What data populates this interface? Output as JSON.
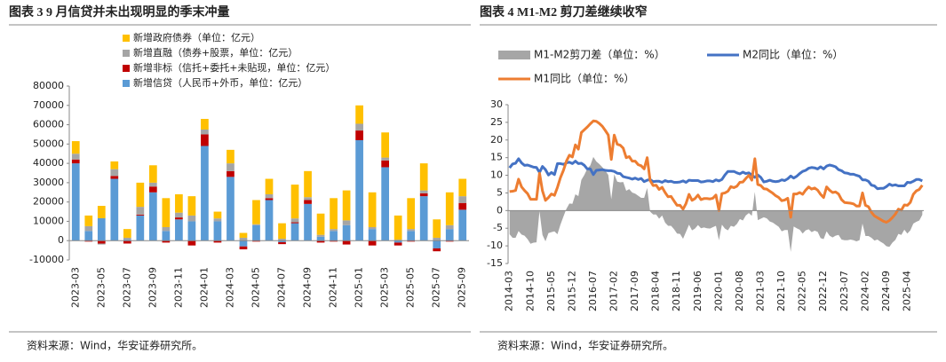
{
  "chart_data": [
    {
      "type": "bar",
      "stacked": true,
      "title": "图表 3 9 月信贷并未出现明显的季末冲量",
      "source": "资料来源：Wind，华安证券研究所。",
      "categories": [
        "2023-03",
        null,
        "2023-05",
        null,
        "2023-07",
        null,
        "2023-09",
        null,
        "2023-11",
        null,
        "2024-01",
        null,
        "2024-03",
        null,
        "2024-05",
        null,
        "2024-07",
        null,
        "2024-09",
        null,
        "2024-11",
        null,
        "2025-01",
        null,
        "2025-03",
        null,
        "2025-05",
        null,
        "2025-07",
        null,
        "2025-09"
      ],
      "series": [
        {
          "name": "新增政府债券（单位：亿元）",
          "color": "#ffc000",
          "values": [
            6500,
            5500,
            6400,
            4000,
            4500,
            12500,
            9000,
            15000,
            9500,
            10000,
            5500,
            3500,
            7000,
            2500,
            12500,
            8000,
            8000,
            17500,
            13500,
            11000,
            16000,
            15500,
            9500,
            18000,
            13000,
            12500,
            16000,
            14000,
            9500,
            17000,
            9000
          ]
        },
        {
          "name": "新增直融（债券+股票，单位：亿元）",
          "color": "#a5a5a5",
          "values": [
            3000,
            2500,
            -500,
            3500,
            1000,
            4000,
            2000,
            2000,
            2500,
            3000,
            2500,
            1500,
            4000,
            1500,
            500,
            2000,
            1000,
            2000,
            1500,
            1000,
            1000,
            2500,
            3500,
            1000,
            1500,
            500,
            1000,
            1500,
            1500,
            2000,
            3500
          ]
        },
        {
          "name": "新增非标（信托+委托+未贴现，单位：亿元）",
          "color": "#c00000",
          "values": [
            2000,
            -500,
            -1500,
            1500,
            -1500,
            500,
            3000,
            -1000,
            1000,
            -2500,
            6000,
            -1000,
            3000,
            -1500,
            -500,
            1000,
            -1000,
            500,
            2000,
            -1000,
            -500,
            -2000,
            5000,
            -2500,
            3500,
            -1500,
            -500,
            1500,
            -1500,
            -500,
            3500
          ]
        },
        {
          "name": "新增信贷（人民币+外币，单位：亿元）",
          "color": "#5b9bd5",
          "values": [
            40000,
            5000,
            11600,
            32000,
            500,
            13000,
            25000,
            5000,
            11000,
            10000,
            49000,
            10000,
            33000,
            -3000,
            8000,
            21000,
            -800,
            9000,
            19000,
            2000,
            5000,
            8000,
            52000,
            6000,
            38000,
            -1000,
            5000,
            23000,
            -4000,
            6000,
            16000
          ]
        }
      ],
      "ylim": [
        -10000,
        80000
      ],
      "yticks": [
        -10000,
        0,
        10000,
        20000,
        30000,
        40000,
        50000,
        60000,
        70000,
        80000
      ]
    },
    {
      "type": "line",
      "title": "图表 4 M1-M2 剪刀差继续收窄",
      "source": "资料来源：Wind，华安证券研究所。",
      "categories": [
        "2014-03",
        null,
        null,
        null,
        null,
        null,
        null,
        "2014-10",
        null,
        null,
        null,
        null,
        null,
        null,
        "2015-05",
        null,
        null,
        null,
        null,
        null,
        null,
        "2015-12",
        null,
        null,
        null,
        null,
        null,
        null,
        "2016-07",
        null,
        null,
        null,
        null,
        null,
        null,
        "2017-02",
        null,
        null,
        null,
        null,
        null,
        null,
        "2017-09",
        null,
        null,
        null,
        null,
        null,
        null,
        "2018-04",
        null,
        null,
        null,
        null,
        null,
        null,
        "2018-11",
        null,
        null,
        null,
        null,
        null,
        null,
        "2019-06",
        null,
        null,
        null,
        null,
        null,
        null,
        "2020-01",
        null,
        null,
        null,
        null,
        null,
        null,
        "2020-08",
        null,
        null,
        null,
        null,
        null,
        null,
        "2021-03",
        null,
        null,
        null,
        null,
        null,
        null,
        "2021-10",
        null,
        null,
        null,
        null,
        null,
        null,
        "2022-05",
        null,
        null,
        null,
        null,
        null,
        null,
        "2022-12",
        null,
        null,
        null,
        null,
        null,
        null,
        "2023-07",
        null,
        null,
        null,
        null,
        null,
        null,
        "2024-02",
        null,
        null,
        null,
        null,
        null,
        null,
        "2024-09",
        null,
        null,
        null,
        null,
        null,
        null,
        "2025-04",
        null,
        null,
        null,
        null,
        null
      ],
      "series": [
        {
          "name": "M1-M2剪刀差（单位：%）",
          "color": "#a6a6a6",
          "kind": "area",
          "values": [
            -6.7,
            -7.7,
            -7.7,
            -5.8,
            -6.8,
            -7.1,
            -8.1,
            -9.4,
            -9.1,
            -9.0,
            -0.2,
            -6.9,
            -8.7,
            -6.4,
            -6.1,
            -5.9,
            -6.7,
            -4.0,
            -1.7,
            0.5,
            2.0,
            1.9,
            4.6,
            4.1,
            8.7,
            10.1,
            11.9,
            12.8,
            15.2,
            13.9,
            13.2,
            12.3,
            11.3,
            10.1,
            3.2,
            10.3,
            8.2,
            8.0,
            8.1,
            5.6,
            6.1,
            5.1,
            4.8,
            4.2,
            3.6,
            3.6,
            6.4,
            -0.3,
            -1.1,
            -1.1,
            -2.3,
            -1.4,
            -3.4,
            -4.3,
            -4.3,
            -5.3,
            -6.5,
            -6.6,
            -8.0,
            -6.0,
            -4.0,
            -5.6,
            -5.1,
            -4.1,
            -5.0,
            -4.8,
            -5.0,
            -5.1,
            -4.7,
            -4.3,
            -8.4,
            -4.0,
            -5.1,
            -5.6,
            -4.3,
            -4.6,
            -3.8,
            -2.4,
            -2.8,
            -1.4,
            -0.7,
            -1.5,
            5.3,
            -2.7,
            -2.3,
            -1.9,
            -2.2,
            -3.1,
            -3.4,
            -4.0,
            -4.6,
            -5.9,
            -5.5,
            -5.5,
            -11.7,
            -4.5,
            -5.0,
            -5.4,
            -6.5,
            -5.6,
            -5.3,
            -6.1,
            -5.7,
            -6.0,
            -7.8,
            -8.1,
            -5.9,
            -7.1,
            -7.6,
            -7.1,
            -6.9,
            -8.2,
            -8.4,
            -8.4,
            -8.2,
            -8.4,
            -8.7,
            -8.4,
            -3.7,
            -7.2,
            -7.2,
            -7.7,
            -8.5,
            -8.2,
            -8.8,
            -9.3,
            -10.1,
            -10.3,
            -9.1,
            -8.3,
            -6.6,
            -6.9,
            -5.4,
            -6.5,
            -5.6,
            -3.7,
            -3.2,
            -2.8,
            -1.2
          ]
        },
        {
          "name": "M2同比（单位：%）",
          "color": "#4472c4",
          "kind": "line",
          "values": [
            12.1,
            13.2,
            13.4,
            14.7,
            13.5,
            12.8,
            12.9,
            12.6,
            12.3,
            12.2,
            10.8,
            12.5,
            11.6,
            10.1,
            10.8,
            10.2,
            13.3,
            13.3,
            13.1,
            13.5,
            13.7,
            13.3,
            14.0,
            13.3,
            13.4,
            12.8,
            11.8,
            11.8,
            10.2,
            11.4,
            11.5,
            11.6,
            11.4,
            11.3,
            11.3,
            11.1,
            10.6,
            10.5,
            9.6,
            9.4,
            9.2,
            8.9,
            9.2,
            8.8,
            9.1,
            8.2,
            8.6,
            8.8,
            8.2,
            8.3,
            8.3,
            8.0,
            8.5,
            8.2,
            8.3,
            8.0,
            8.0,
            8.1,
            8.4,
            8.0,
            8.6,
            8.5,
            8.5,
            8.5,
            8.1,
            8.2,
            8.4,
            8.4,
            8.2,
            8.7,
            8.4,
            8.8,
            10.1,
            11.1,
            11.1,
            11.1,
            10.7,
            10.4,
            10.9,
            10.5,
            10.7,
            10.1,
            9.4,
            10.1,
            9.4,
            8.1,
            8.3,
            8.6,
            8.3,
            8.2,
            8.3,
            8.7,
            8.5,
            9.0,
            9.8,
            9.2,
            9.7,
            10.5,
            11.1,
            11.4,
            12.0,
            12.2,
            12.1,
            11.8,
            12.4,
            11.8,
            12.6,
            12.9,
            12.7,
            12.4,
            11.6,
            11.3,
            10.7,
            10.6,
            10.3,
            10.3,
            10.0,
            9.7,
            8.7,
            8.7,
            8.3,
            7.2,
            7.0,
            6.2,
            6.3,
            6.3,
            6.8,
            7.5,
            7.1,
            7.3,
            7.0,
            7.0,
            7.0,
            8.0,
            7.9,
            8.3,
            8.8,
            8.8,
            8.4
          ]
        },
        {
          "name": "M1同比（单位：%）",
          "color": "#ed7d31",
          "kind": "line",
          "values": [
            5.4,
            5.5,
            5.7,
            8.9,
            6.7,
            5.7,
            4.8,
            3.2,
            3.2,
            3.2,
            10.6,
            5.6,
            2.9,
            3.7,
            4.7,
            4.3,
            6.6,
            9.3,
            11.4,
            14.0,
            15.7,
            15.2,
            18.6,
            17.4,
            22.1,
            22.9,
            23.7,
            24.6,
            25.4,
            25.3,
            24.7,
            23.9,
            22.7,
            21.4,
            14.5,
            21.4,
            18.8,
            18.5,
            17.7,
            15.0,
            15.3,
            14.0,
            14.0,
            13.0,
            12.7,
            11.8,
            15.0,
            8.5,
            7.1,
            7.2,
            6.0,
            6.6,
            5.1,
            3.9,
            4.0,
            2.7,
            1.5,
            1.5,
            0.4,
            2.0,
            4.6,
            2.9,
            3.4,
            4.4,
            3.1,
            3.4,
            3.4,
            3.3,
            3.5,
            4.4,
            0.0,
            4.8,
            5.0,
            5.5,
            6.8,
            6.5,
            6.9,
            8.0,
            8.1,
            9.1,
            10.0,
            8.6,
            14.7,
            7.4,
            7.1,
            6.2,
            6.1,
            5.5,
            4.9,
            4.2,
            3.7,
            2.8,
            3.0,
            3.5,
            -1.9,
            4.7,
            4.7,
            5.1,
            4.6,
            5.8,
            6.7,
            6.1,
            6.4,
            5.8,
            4.6,
            3.7,
            6.7,
            5.8,
            5.1,
            5.3,
            4.7,
            3.1,
            2.3,
            2.2,
            2.1,
            1.9,
            1.3,
            1.3,
            5.0,
            1.5,
            1.1,
            -0.5,
            -1.5,
            -2.0,
            -2.5,
            -3.0,
            -3.3,
            -2.8,
            -2.0,
            -1.0,
            0.4,
            0.1,
            1.6,
            1.5,
            2.3,
            4.6,
            5.6,
            6.0,
            7.2
          ]
        }
      ],
      "ylim": [
        -15,
        30
      ],
      "yticks": [
        -15,
        -10,
        -5,
        0,
        5,
        10,
        15,
        20,
        25,
        30
      ]
    }
  ]
}
